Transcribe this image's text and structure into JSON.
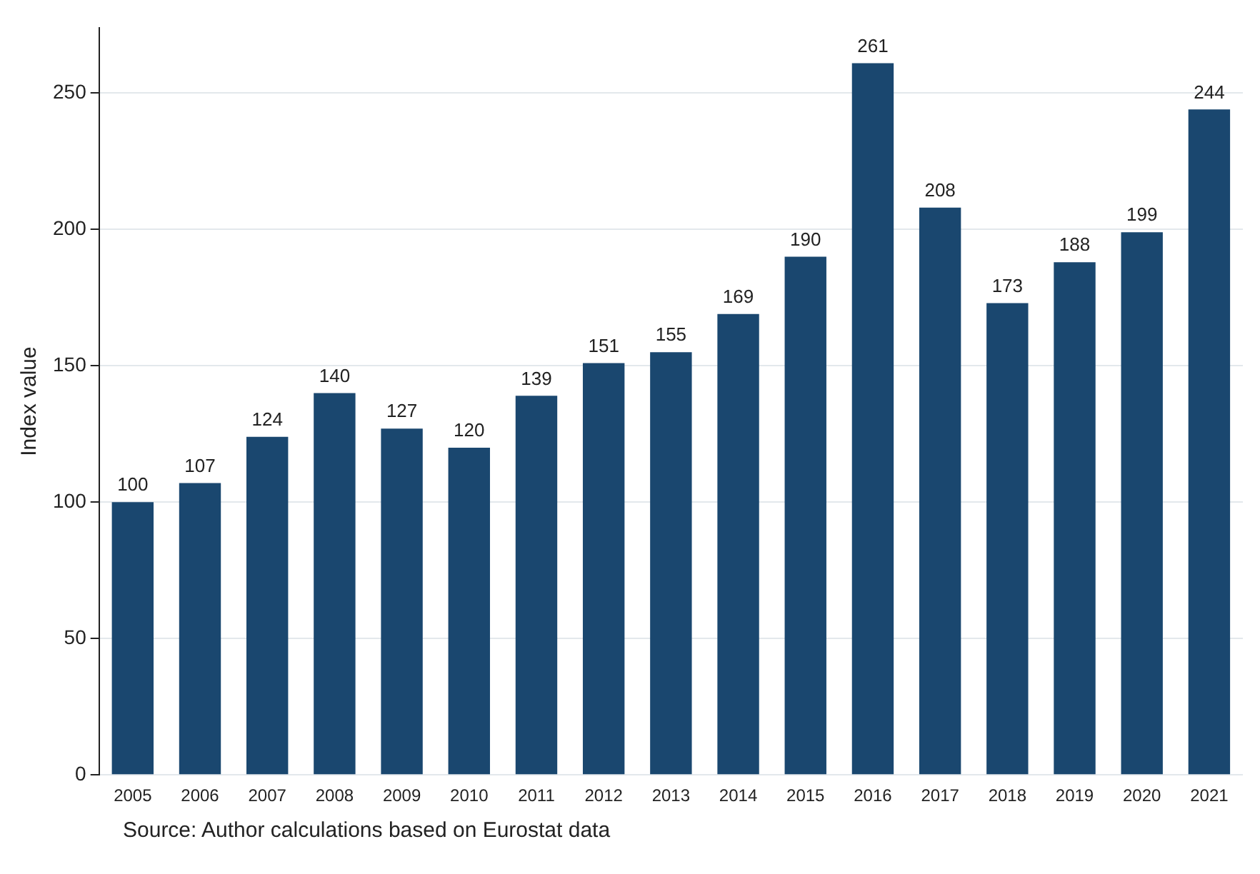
{
  "chart_data": {
    "type": "bar",
    "ylabel": "Index value",
    "categories": [
      "2005",
      "2006",
      "2007",
      "2008",
      "2009",
      "2010",
      "2011",
      "2012",
      "2013",
      "2014",
      "2015",
      "2016",
      "2017",
      "2018",
      "2019",
      "2020",
      "2021"
    ],
    "values": [
      100,
      107,
      124,
      140,
      127,
      120,
      139,
      151,
      155,
      169,
      190,
      261,
      208,
      173,
      188,
      199,
      244
    ],
    "color": "#1a476f",
    "ylim": [
      0,
      274
    ],
    "yticks": [
      0,
      50,
      100,
      150,
      200,
      250
    ],
    "grid": "y",
    "data_labels": true,
    "annotations": [
      "Source: Author calculations based on Eurostat data"
    ]
  }
}
